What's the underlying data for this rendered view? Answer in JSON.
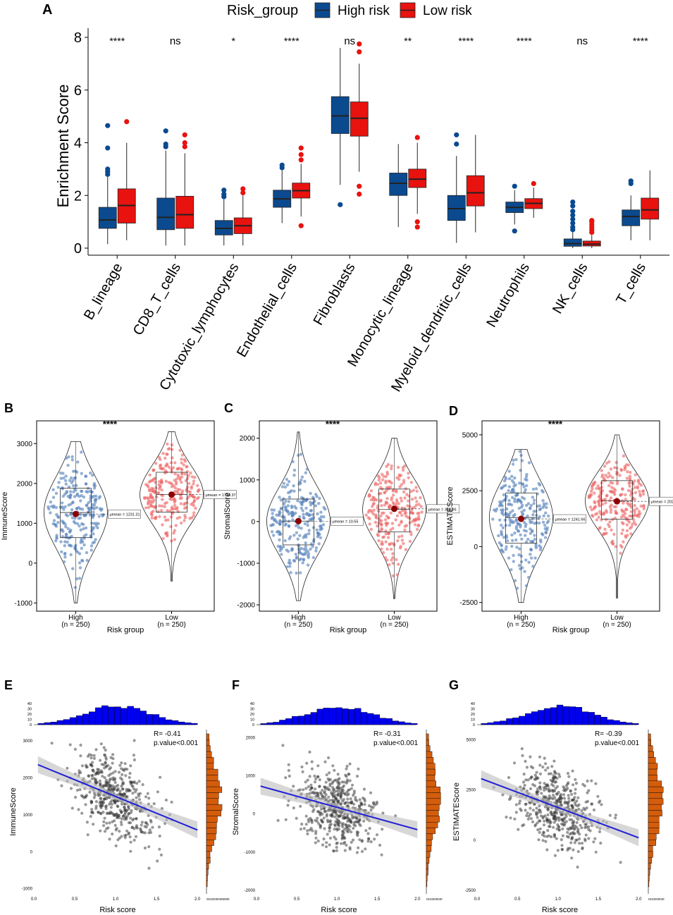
{
  "colors": {
    "high": "#0b4a8f",
    "low": "#e8120f",
    "high_pt": "#5b86bd",
    "low_pt": "#ee6b6b",
    "hist_top": "#0000ee",
    "hist_right": "#d45d0c",
    "line": "#1f1fd6",
    "band": "#bdbdbd"
  },
  "panel_A": {
    "label": "A",
    "legend_title": "Risk_group",
    "legend_items": [
      "High risk",
      "Low risk"
    ],
    "ylabel": "Enrichment Score",
    "chart_data": {
      "type": "box",
      "ylim": [
        0,
        8
      ],
      "yticks": [
        0,
        2,
        4,
        6,
        8
      ],
      "categories": [
        "B_lineage",
        "CD8_T_cells",
        "Cytotoxic_lymphocytes",
        "Endothelial_cells",
        "Fibroblasts",
        "Monocytic_lineage",
        "Myeloid_dendritic_cells",
        "Neutrophils",
        "NK_cells",
        "T_cells"
      ],
      "significance": [
        "****",
        "ns",
        "*",
        "****",
        "ns",
        "**",
        "****",
        "****",
        "ns",
        "****"
      ],
      "series": [
        {
          "name": "High risk",
          "boxes": [
            {
              "min": 0.15,
              "q1": 0.75,
              "med": 1.07,
              "q3": 1.55,
              "max": 2.7,
              "out": [
                2.8,
                2.9,
                3.0,
                3.8,
                4.65
              ]
            },
            {
              "min": 0.1,
              "q1": 0.7,
              "med": 1.17,
              "q3": 1.9,
              "max": 3.7,
              "out": [
                3.85,
                3.95,
                4.45
              ]
            },
            {
              "min": 0.1,
              "q1": 0.5,
              "med": 0.75,
              "q3": 1.05,
              "max": 1.85,
              "out": [
                1.95,
                2.05,
                2.2
              ]
            },
            {
              "min": 0.95,
              "q1": 1.55,
              "med": 1.87,
              "q3": 2.2,
              "max": 2.95,
              "out": [
                3.05,
                3.15
              ]
            },
            {
              "min": 2.4,
              "q1": 4.35,
              "med": 5.02,
              "q3": 5.75,
              "max": 7.6,
              "out": [
                1.65
              ]
            },
            {
              "min": 0.8,
              "q1": 2.0,
              "med": 2.46,
              "q3": 2.85,
              "max": 3.95,
              "out": []
            },
            {
              "min": 0.2,
              "q1": 1.05,
              "med": 1.5,
              "q3": 2.0,
              "max": 3.5,
              "out": [
                3.95,
                4.3
              ]
            },
            {
              "min": 0.9,
              "q1": 1.35,
              "med": 1.55,
              "q3": 1.75,
              "max": 2.2,
              "out": [
                0.65,
                2.35
              ]
            },
            {
              "min": 0.0,
              "q1": 0.07,
              "med": 0.17,
              "q3": 0.35,
              "max": 0.6,
              "out": [
                0.7,
                0.8,
                0.95,
                1.1,
                1.25,
                1.4,
                1.6,
                1.75
              ]
            },
            {
              "min": 0.3,
              "q1": 0.85,
              "med": 1.2,
              "q3": 1.45,
              "max": 2.0,
              "out": [
                2.45,
                2.55
              ]
            }
          ]
        },
        {
          "name": "Low risk",
          "boxes": [
            {
              "min": 0.3,
              "q1": 0.95,
              "med": 1.62,
              "q3": 2.25,
              "max": 4.0,
              "out": [
                4.8
              ]
            },
            {
              "min": 0.1,
              "q1": 0.75,
              "med": 1.27,
              "q3": 1.97,
              "max": 3.6,
              "out": [
                3.85,
                4.0,
                4.3
              ]
            },
            {
              "min": 0.1,
              "q1": 0.55,
              "med": 0.85,
              "q3": 1.15,
              "max": 2.0,
              "out": [
                2.1,
                2.25
              ]
            },
            {
              "min": 1.2,
              "q1": 1.9,
              "med": 2.18,
              "q3": 2.47,
              "max": 3.2,
              "out": [
                0.85,
                3.35,
                3.55,
                3.8
              ]
            },
            {
              "min": 2.9,
              "q1": 4.25,
              "med": 4.93,
              "q3": 5.55,
              "max": 7.0,
              "out": [
                2.05,
                2.35,
                7.45,
                7.75
              ]
            },
            {
              "min": 1.3,
              "q1": 2.3,
              "med": 2.62,
              "q3": 3.0,
              "max": 4.0,
              "out": [
                0.8,
                1.0,
                4.2
              ]
            },
            {
              "min": 0.6,
              "q1": 1.6,
              "med": 2.1,
              "q3": 2.75,
              "max": 4.3,
              "out": []
            },
            {
              "min": 1.15,
              "q1": 1.5,
              "med": 1.7,
              "q3": 1.88,
              "max": 2.3,
              "out": [
                2.45
              ]
            },
            {
              "min": 0.0,
              "q1": 0.08,
              "med": 0.15,
              "q3": 0.27,
              "max": 0.5,
              "out": [
                0.6,
                0.7,
                0.8,
                0.9,
                1.0,
                1.05
              ]
            },
            {
              "min": 0.3,
              "q1": 1.1,
              "med": 1.45,
              "q3": 1.9,
              "max": 2.95,
              "out": []
            }
          ]
        }
      ]
    }
  },
  "violin_panels": [
    {
      "label": "B",
      "ylabel": "ImmuneScore",
      "xlabel": "Risk group",
      "sig": "****",
      "groups": [
        {
          "name": "High",
          "n": "(n = 250)",
          "mean_label": "μmean = 1231.31"
        },
        {
          "name": "Low",
          "n": "(n = 250)",
          "mean_label": "μmean = 1720.37"
        }
      ],
      "chart_data": {
        "type": "violin",
        "ylim": [
          -1100,
          3500
        ],
        "yticks": [
          -1000,
          0,
          1000,
          2000,
          3000
        ],
        "groups": [
          {
            "min": -1000,
            "q1": 640,
            "med": 1270,
            "q3": 1880,
            "max": 3050,
            "mean": 1231.31
          },
          {
            "min": -450,
            "q1": 1280,
            "med": 1720,
            "q3": 2280,
            "max": 3300,
            "mean": 1720.37
          }
        ]
      }
    },
    {
      "label": "C",
      "ylabel": "StromalScore",
      "xlabel": "Risk group",
      "sig": "****",
      "groups": [
        {
          "name": "High",
          "n": "(n = 250)",
          "mean_label": "μmean = 10.55"
        },
        {
          "name": "Low",
          "n": "(n = 250)",
          "mean_label": "μmean = 304.96"
        }
      ],
      "chart_data": {
        "type": "violin",
        "ylim": [
          -2050,
          2350
        ],
        "yticks": [
          -2000,
          -1000,
          0,
          1000,
          2000
        ],
        "groups": [
          {
            "min": -1900,
            "q1": -560,
            "med": 10,
            "q3": 540,
            "max": 2150,
            "mean": 10.55
          },
          {
            "min": -1850,
            "q1": -250,
            "med": 290,
            "q3": 780,
            "max": 2000,
            "mean": 304.96
          }
        ]
      }
    },
    {
      "label": "D",
      "ylabel": "ESTIMATEScore",
      "xlabel": "Risk group",
      "sig": "****",
      "groups": [
        {
          "name": "High",
          "n": "(n = 250)",
          "mean_label": "μmean = 1241.66"
        },
        {
          "name": "Low",
          "n": "(n = 250)",
          "mean_label": "μmean = 2025.33"
        }
      ],
      "chart_data": {
        "type": "violin",
        "ylim": [
          -2700,
          5500
        ],
        "yticks": [
          -2500,
          0,
          2500,
          5000
        ],
        "groups": [
          {
            "min": -2500,
            "q1": 150,
            "med": 1300,
            "q3": 2400,
            "max": 4350,
            "mean": 1241.66
          },
          {
            "min": -2300,
            "q1": 1230,
            "med": 2050,
            "q3": 2950,
            "max": 5000,
            "mean": 2025.33
          }
        ]
      }
    }
  ],
  "scatter_panels": [
    {
      "label": "E",
      "ylabel": "ImmuneScore",
      "xlabel": "Risk score",
      "r_text": "R= -0.41",
      "p_text": "p.value<0.001",
      "chart_data": {
        "type": "scatter",
        "xlim": [
          0,
          2.05
        ],
        "xticks": [
          "0.0",
          "0.5",
          "1.0",
          "1.5",
          "2.0"
        ],
        "ylim": [
          -1150,
          3300
        ],
        "yticks": [
          -1000,
          0,
          1000,
          2000,
          3000
        ],
        "fit": {
          "x0": 0.05,
          "y0": 2350,
          "x1": 2.0,
          "y1": 580
        },
        "top_hist_ticks": [
          "40",
          "30",
          "20",
          "10",
          "0"
        ],
        "right_hist_ticks": "0102030405060",
        "right_hist_max": 60
      }
    },
    {
      "label": "F",
      "ylabel": "StromalScore",
      "xlabel": "Risk score",
      "r_text": "R= -0.31",
      "p_text": "p.value<0.001",
      "chart_data": {
        "type": "scatter",
        "xlim": [
          0,
          2.05
        ],
        "xticks": [
          "0.0",
          "0.5",
          "1.0",
          "1.5",
          "2.0"
        ],
        "ylim": [
          -2100,
          2200
        ],
        "yticks": [
          -2000,
          -1000,
          0,
          1000,
          2000
        ],
        "fit": {
          "x0": 0.05,
          "y0": 720,
          "x1": 2.0,
          "y1": -420
        },
        "top_hist_ticks": [
          "40",
          "30",
          "20",
          "10",
          "0"
        ],
        "right_hist_ticks": "010203040",
        "right_hist_max": 40
      }
    },
    {
      "label": "G",
      "ylabel": "ESTIMATEScore",
      "xlabel": "Risk score",
      "r_text": "R= -0.39",
      "p_text": "p.value<0.001",
      "chart_data": {
        "type": "scatter",
        "xlim": [
          0,
          2.05
        ],
        "xticks": [
          "0.0",
          "0.5",
          "1.0",
          "1.5",
          "2.0"
        ],
        "ylim": [
          -2700,
          5500
        ],
        "yticks": [
          -2500,
          0,
          2500,
          5000
        ],
        "fit": {
          "x0": 0.05,
          "y0": 3050,
          "x1": 2.0,
          "y1": 100
        },
        "top_hist_ticks": [
          "40",
          "30",
          "20",
          "10",
          "0"
        ],
        "right_hist_ticks": "010203040",
        "right_hist_max": 40
      }
    }
  ]
}
